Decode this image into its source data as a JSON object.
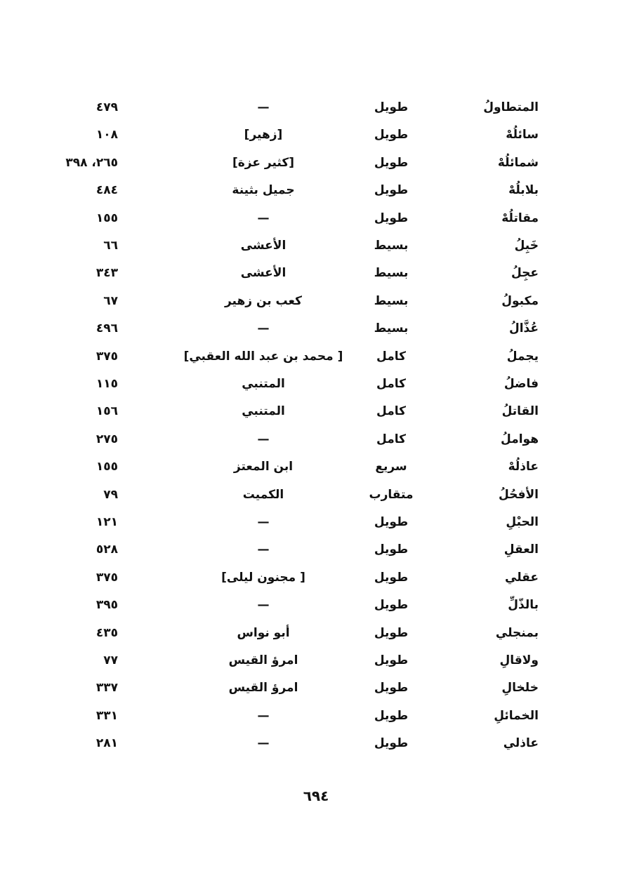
{
  "rows": [
    {
      "rhyme": "المتطاولُ",
      "meter": "طويل",
      "poet": "—",
      "pages": "٤٧٩"
    },
    {
      "rhyme": "سائلُهْ",
      "meter": "طويل",
      "poet": "[زهير]",
      "pages": "١٠٨"
    },
    {
      "rhyme": "شمائلُهْ",
      "meter": "طويل",
      "poet": "[كثير عزة]",
      "pages": "٢٦٥، ٣٩٨"
    },
    {
      "rhyme": "بلابلُهْ",
      "meter": "طويل",
      "poet": "جميل بثينة",
      "pages": "٤٨٤"
    },
    {
      "rhyme": "مقاتلُهْ",
      "meter": "طويل",
      "poet": "—",
      "pages": "١٥٥"
    },
    {
      "rhyme": "خَبِلُ",
      "meter": "بسيط",
      "poet": "الأعشى",
      "pages": "٦٦"
    },
    {
      "rhyme": "عجِلُ",
      "meter": "بسيط",
      "poet": "الأعشى",
      "pages": "٣٤٣"
    },
    {
      "rhyme": "مكبولُ",
      "meter": "بسيط",
      "poet": "كعب بن زهير",
      "pages": "٦٧"
    },
    {
      "rhyme": "عُذَّالُ",
      "meter": "بسيط",
      "poet": "—",
      "pages": "٤٩٦"
    },
    {
      "rhyme": "يجملُ",
      "meter": "كامل",
      "poet": "[ محمد بن عبد الله العقبي]",
      "pages": "٣٧٥"
    },
    {
      "rhyme": "فاضلُ",
      "meter": "كامل",
      "poet": "المتنبي",
      "pages": "١١٥"
    },
    {
      "rhyme": "القاتلُ",
      "meter": "كامل",
      "poet": "المتنبي",
      "pages": "١٥٦"
    },
    {
      "rhyme": "هواملُ",
      "meter": "كامل",
      "poet": "—",
      "pages": "٢٧٥"
    },
    {
      "rhyme": "عاذلُهْ",
      "meter": "سريع",
      "poet": "ابن المعتز",
      "pages": "١٥٥"
    },
    {
      "rhyme": "الأفحُلُ",
      "meter": "متقارب",
      "poet": "الكميت",
      "pages": "٧٩"
    },
    {
      "rhyme": "الحبْلِ",
      "meter": "طويل",
      "poet": "—",
      "pages": "١٢١"
    },
    {
      "rhyme": "العقلِ",
      "meter": "طويل",
      "poet": "—",
      "pages": "٥٢٨"
    },
    {
      "rhyme": "عقلي",
      "meter": "طويل",
      "poet": "[ مجنون ليلى]",
      "pages": "٣٧٥"
    },
    {
      "rhyme": "بالذّلِّ",
      "meter": "طويل",
      "poet": "—",
      "pages": "٣٩٥"
    },
    {
      "rhyme": "بمنجلي",
      "meter": "طويل",
      "poet": "أبو نواس",
      "pages": "٤٣٥"
    },
    {
      "rhyme": "ولاقالِ",
      "meter": "طويل",
      "poet": "امرؤ القيس",
      "pages": "٧٧"
    },
    {
      "rhyme": "خلخالِ",
      "meter": "طويل",
      "poet": "امرؤ القيس",
      "pages": "٣٣٧"
    },
    {
      "rhyme": "الخمائلِ",
      "meter": "طويل",
      "poet": "—",
      "pages": "٣٣١"
    },
    {
      "rhyme": "عاذلي",
      "meter": "طويل",
      "poet": "—",
      "pages": "٢٨١"
    }
  ],
  "page_number": "٦٩٤"
}
